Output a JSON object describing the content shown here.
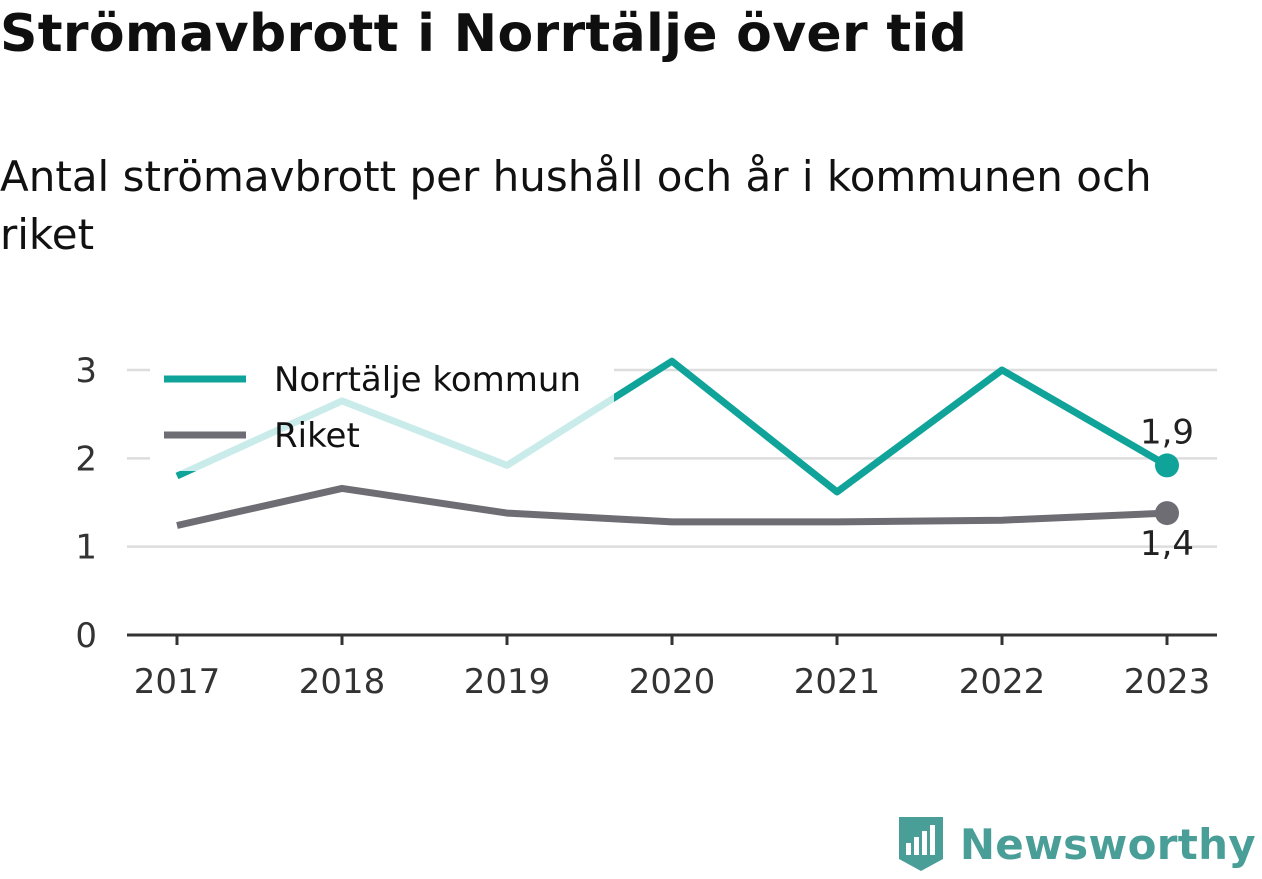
{
  "title": "Strömavbrott i Norrtälje över tid",
  "subtitle": "Antal strömavbrott per hushåll och år i kommunen och riket",
  "brand": {
    "name": "Newsworthy",
    "color": "#4a9e98",
    "icon": "bar-chart-badge-icon"
  },
  "chart_data": {
    "type": "line",
    "x": [
      "2017",
      "2018",
      "2019",
      "2020",
      "2021",
      "2022",
      "2023"
    ],
    "ylim": [
      0,
      3
    ],
    "yticks": [
      0,
      1,
      2,
      3
    ],
    "grid": true,
    "legend_position": "top-left",
    "series": [
      {
        "name": "Norrtälje kommun",
        "color": "#0fa39a",
        "faded_color": "#c9ecea",
        "values": [
          1.8,
          2.65,
          1.92,
          3.1,
          1.62,
          3.0,
          1.92
        ],
        "end_label": "1,9"
      },
      {
        "name": "Riket",
        "color": "#6e6d74",
        "values": [
          1.24,
          1.66,
          1.38,
          1.28,
          1.28,
          1.3,
          1.38
        ],
        "end_label": "1,4"
      }
    ]
  }
}
